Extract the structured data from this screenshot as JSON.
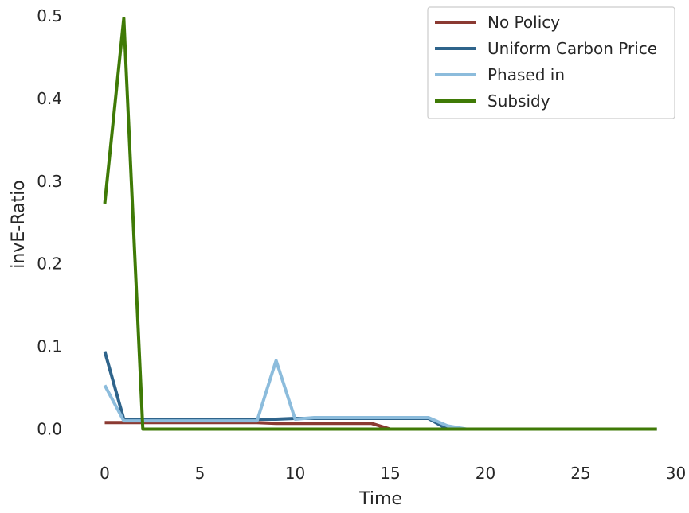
{
  "chart_data": {
    "type": "line",
    "title": "",
    "xlabel": "Time",
    "ylabel": "invE-Ratio",
    "xlim": [
      -2,
      30
    ],
    "ylim": [
      -0.035,
      0.5
    ],
    "xticks": [
      0,
      5,
      10,
      15,
      20,
      25,
      30
    ],
    "xtick_labels": [
      "0",
      "5",
      "10",
      "15",
      "20",
      "25",
      "30"
    ],
    "yticks": [
      0.0,
      0.1,
      0.2,
      0.3,
      0.4,
      0.5
    ],
    "ytick_labels": [
      "0.0",
      "0.1",
      "0.2",
      "0.3",
      "0.4",
      "0.5"
    ],
    "grid": false,
    "legend_position": "top-right",
    "x": [
      0,
      1,
      2,
      3,
      4,
      5,
      6,
      7,
      8,
      9,
      10,
      11,
      12,
      13,
      14,
      15,
      16,
      17,
      18,
      19,
      20,
      21,
      22,
      23,
      24,
      25,
      26,
      27,
      28,
      29
    ],
    "series": [
      {
        "name": "No Policy",
        "color": "#8b3a32",
        "values": [
          0.008,
          0.008,
          0.008,
          0.008,
          0.008,
          0.008,
          0.008,
          0.008,
          0.008,
          0.007,
          0.007,
          0.007,
          0.007,
          0.007,
          0.007,
          0.0,
          0.0,
          0.0,
          0.0,
          0.0,
          0.0,
          0.0,
          0.0,
          0.0,
          0.0,
          0.0,
          0.0,
          0.0,
          0.0,
          0.0
        ]
      },
      {
        "name": "Uniform Carbon Price",
        "color": "#2f648b",
        "values": [
          0.094,
          0.012,
          0.012,
          0.012,
          0.012,
          0.012,
          0.012,
          0.012,
          0.012,
          0.012,
          0.013,
          0.013,
          0.013,
          0.013,
          0.013,
          0.013,
          0.013,
          0.013,
          0.0,
          0.0,
          0.0,
          0.0,
          0.0,
          0.0,
          0.0,
          0.0,
          0.0,
          0.0,
          0.0,
          0.0
        ]
      },
      {
        "name": "Phased in",
        "color": "#8cbcdc",
        "values": [
          0.053,
          0.01,
          0.01,
          0.01,
          0.01,
          0.01,
          0.01,
          0.01,
          0.01,
          0.083,
          0.012,
          0.014,
          0.014,
          0.014,
          0.014,
          0.014,
          0.014,
          0.014,
          0.004,
          0.0,
          0.0,
          0.0,
          0.0,
          0.0,
          0.0,
          0.0,
          0.0,
          0.0,
          0.0,
          0.0
        ]
      },
      {
        "name": "Subsidy",
        "color": "#3f7a06",
        "values": [
          0.273,
          0.497,
          0.0,
          0.0,
          0.0,
          0.0,
          0.0,
          0.0,
          0.0,
          0.0,
          0.0,
          0.0,
          0.0,
          0.0,
          0.0,
          0.0,
          0.0,
          0.0,
          0.0,
          0.0,
          0.0,
          0.0,
          0.0,
          0.0,
          0.0,
          0.0,
          0.0,
          0.0,
          0.0,
          0.0
        ]
      }
    ]
  }
}
